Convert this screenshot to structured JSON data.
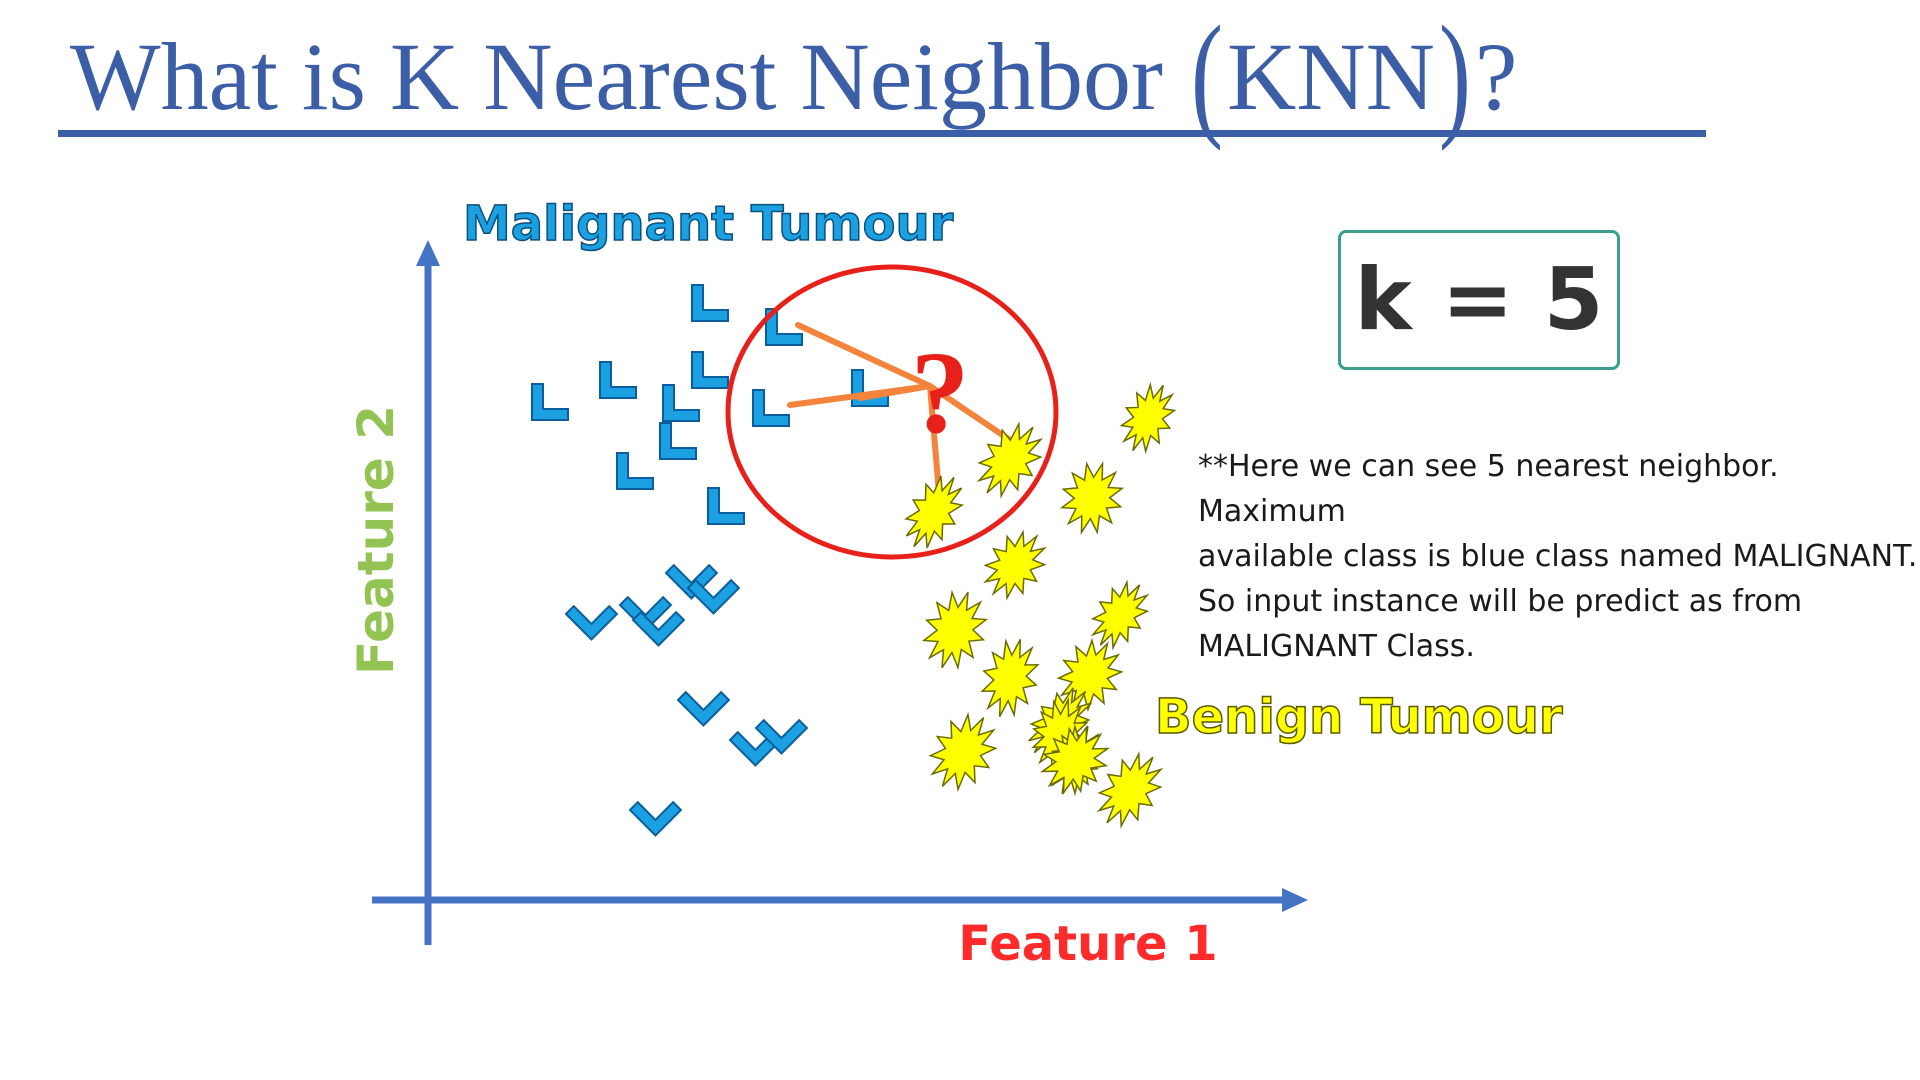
{
  "title": {
    "before": "What is K Nearest Neighbor",
    "open_paren": "(",
    "acronym": "KNN",
    "close_paren": ")",
    "after": "?"
  },
  "diagram": {
    "y_axis_label": "Feature 2",
    "x_axis_label": "Feature 1",
    "class_malignant_label": "Malignant Tumour",
    "class_benign_label": "Benign Tumour",
    "query_symbol": "?",
    "colors": {
      "axis": "#4472c4",
      "malignant": "#1ba1e2",
      "benign": "#ffff00",
      "neighbor_circle": "#e8201a",
      "neighbor_lines": "#f4843b",
      "feature1": "#ff2a2a",
      "feature2": "#92c353"
    },
    "neighbors_highlighted": 5
  },
  "k_label": "k = 5",
  "note": "**Here we can see 5 nearest neighbor. Maximum\navailable class is blue class named MALIGNANT.\nSo input instance will be predict as from\nMALIGNANT Class."
}
